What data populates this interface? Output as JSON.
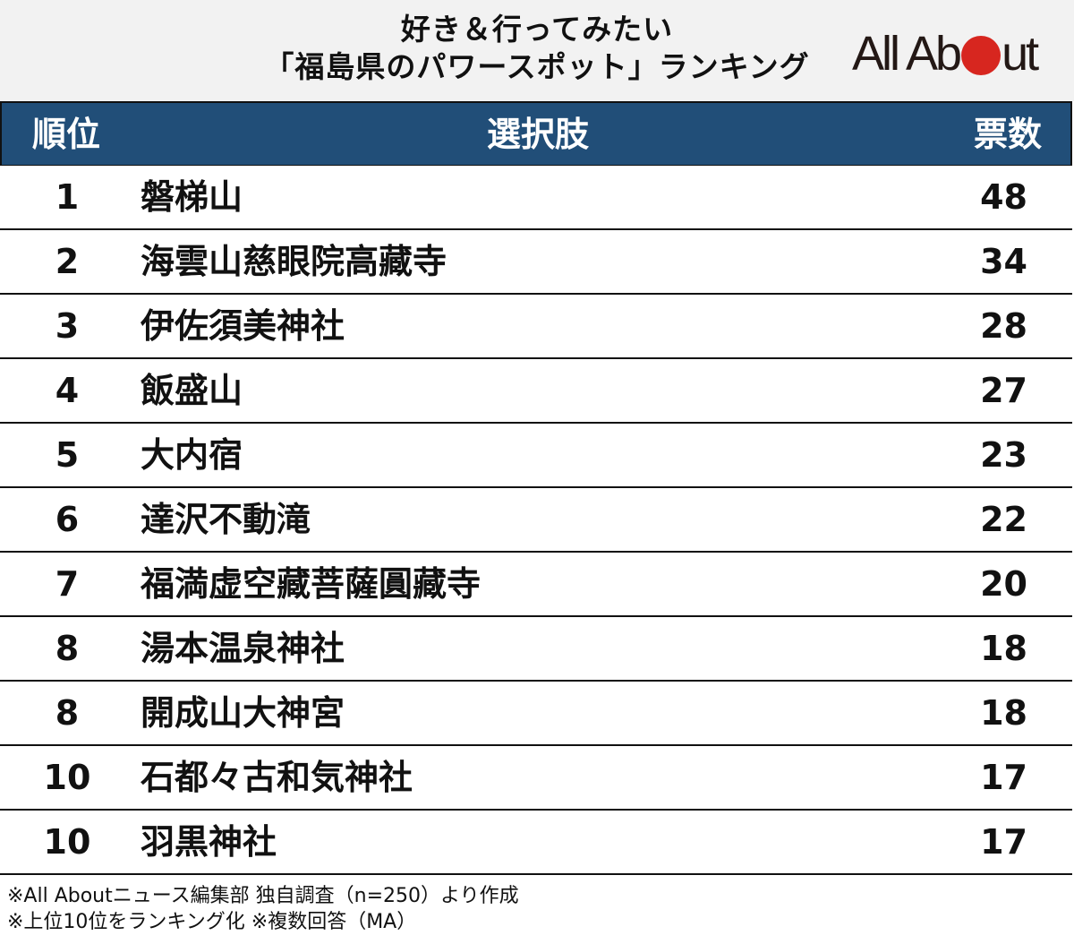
{
  "header": {
    "title_line1": "好き＆行ってみたい",
    "title_line2": "「福島県のパワースポット」ランキング",
    "logo": {
      "text_before": "All Ab",
      "text_after": "ut",
      "dot_color": "#d7261f"
    }
  },
  "table": {
    "header_bg": "#214e78",
    "columns": {
      "rank": "順位",
      "choice": "選択肢",
      "votes": "票数"
    },
    "rows": [
      {
        "rank": "1",
        "choice": "磐梯山",
        "votes": "48"
      },
      {
        "rank": "2",
        "choice": "海雲山慈眼院高藏寺",
        "votes": "34"
      },
      {
        "rank": "3",
        "choice": "伊佐須美神社",
        "votes": "28"
      },
      {
        "rank": "4",
        "choice": "飯盛山",
        "votes": "27"
      },
      {
        "rank": "5",
        "choice": "大内宿",
        "votes": "23"
      },
      {
        "rank": "6",
        "choice": "達沢不動滝",
        "votes": "22"
      },
      {
        "rank": "7",
        "choice": "福満虚空藏菩薩圓藏寺",
        "votes": "20"
      },
      {
        "rank": "8",
        "choice": "湯本温泉神社",
        "votes": "18"
      },
      {
        "rank": "8",
        "choice": "開成山大神宮",
        "votes": "18"
      },
      {
        "rank": "10",
        "choice": "石都々古和気神社",
        "votes": "17"
      },
      {
        "rank": "10",
        "choice": "羽黒神社",
        "votes": "17"
      }
    ]
  },
  "footer": {
    "line1": "※All Aboutニュース編集部 独自調査（n=250）より作成",
    "line2": "※上位10位をランキング化 ※複数回答（MA）"
  }
}
